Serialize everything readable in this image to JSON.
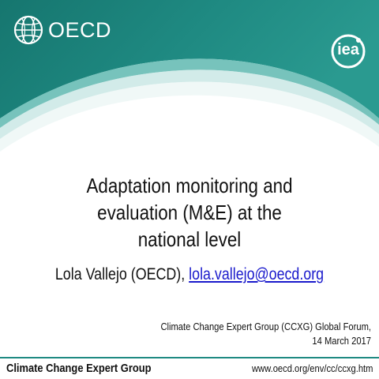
{
  "branding": {
    "left_logo_text": "OECD",
    "right_logo_text": "iea"
  },
  "colors": {
    "header_teal": "#1f8a82",
    "header_teal_dark": "#136f6a",
    "header_teal_light": "#6fc3bb",
    "link_blue": "#1a1acc",
    "footer_rule": "#1f8a82"
  },
  "icons": {
    "left_logo": "oecd-globe-icon",
    "right_logo": "iea-circle-icon"
  },
  "slide": {
    "title_lines": [
      "Adaptation monitoring and",
      "evaluation (M&E) at the",
      "national level"
    ],
    "author_prefix": "Lola Vallejo (OECD), ",
    "author_email": "lola.vallejo@oecd.org",
    "event_line1": "Climate Change Expert Group (CCXG) Global Forum,",
    "event_line2": "14 March 2017"
  },
  "footer": {
    "left_text": "Climate Change Expert Group",
    "right_text": "www.oecd.org/env/cc/ccxg.htm"
  }
}
